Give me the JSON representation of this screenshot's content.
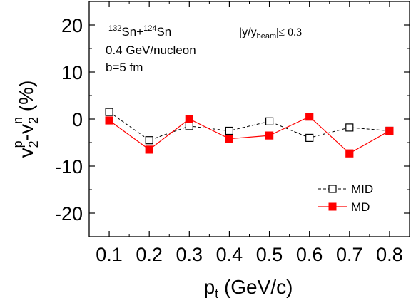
{
  "chart_data": {
    "type": "line",
    "x": [
      0.1,
      0.2,
      0.3,
      0.4,
      0.5,
      0.6,
      0.7,
      0.8
    ],
    "xlim": [
      0.05,
      0.85
    ],
    "ylim": [
      -25,
      25
    ],
    "x_ticks": [
      "0.1",
      "0.2",
      "0.3",
      "0.4",
      "0.5",
      "0.6",
      "0.7",
      "0.8"
    ],
    "y_ticks": [
      "20",
      "10",
      "0",
      "-10",
      "-20"
    ],
    "x_tick_values": [
      0.1,
      0.2,
      0.3,
      0.4,
      0.5,
      0.6,
      0.7,
      0.8
    ],
    "y_tick_values": [
      20,
      10,
      0,
      -10,
      -20
    ],
    "xlabel": "p",
    "xlabel_sub": "t",
    "xlabel_rest": " (GeV/c)",
    "ylabel": {
      "v1": "v",
      "sub1": "2",
      "sup1": "p",
      "dash": "-v",
      "sub2": "2",
      "sup2": "n",
      "unit": " (%)"
    },
    "series": [
      {
        "name": "MID",
        "values": [
          1.5,
          -4.5,
          -1.5,
          -2.5,
          -0.5,
          -4.0,
          -1.8,
          -2.5
        ],
        "color": "#000000",
        "line_style": "dashed",
        "marker": "open-square"
      },
      {
        "name": "MD",
        "values": [
          -0.3,
          -6.5,
          0.0,
          -4.2,
          -3.5,
          0.5,
          -7.3,
          -2.5
        ],
        "color": "#ff0000",
        "line_style": "solid",
        "marker": "filled-square"
      }
    ],
    "annotations": {
      "reaction": {
        "a1": "132",
        "e1": "Sn+",
        "a2": "124",
        "e2": "Sn"
      },
      "energy": "0.4 GeV/nucleon",
      "impact": "b=5 fm",
      "rapidity": {
        "pre": "|y/y",
        "sub": "beam",
        "post": "|≤ 0.3"
      }
    },
    "legend_position": "bottom-right",
    "grid": false
  }
}
